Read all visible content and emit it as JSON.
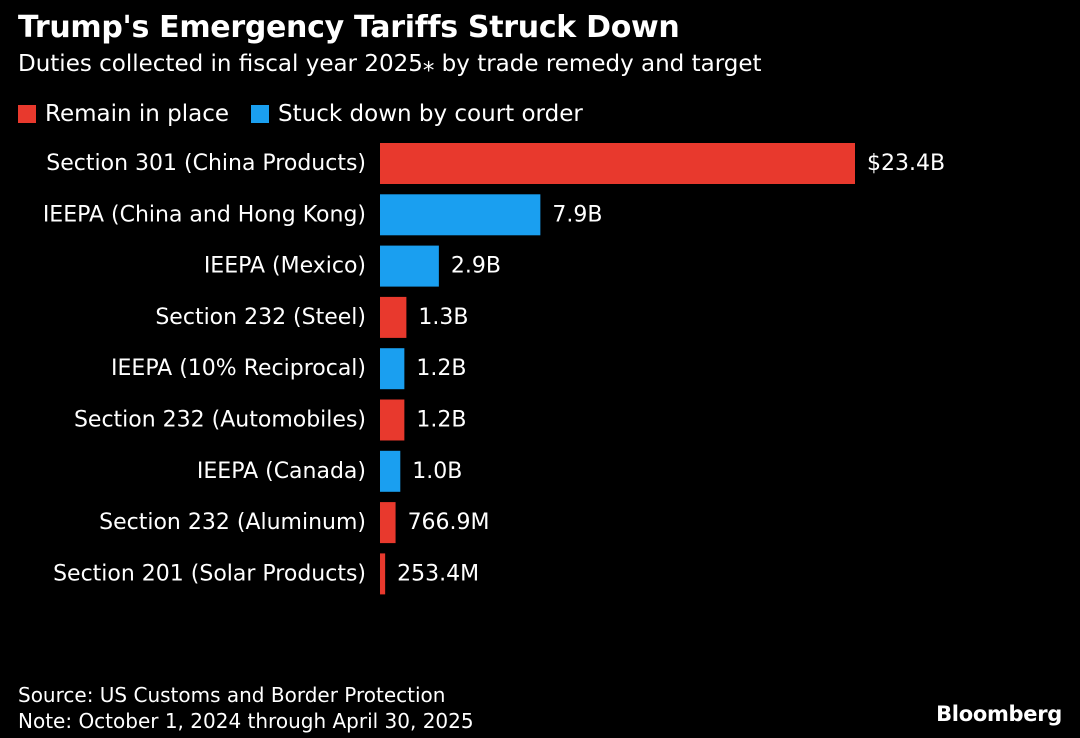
{
  "chart_data": {
    "type": "bar",
    "orientation": "horizontal",
    "title": "Trump's Emergency Tariffs Struck Down",
    "subtitle": "Duties collected in fiscal year 2025⁎ by trade remedy and target",
    "legend": [
      {
        "label": "Remain in place",
        "color": "#e8392d"
      },
      {
        "label": "Stuck down by court order",
        "color": "#1a9ff0"
      }
    ],
    "legend_position": "top-left",
    "grid": false,
    "unit": "USD billions",
    "categories": [
      "Section 301 (China Products)",
      "IEEPA (China and Hong Kong)",
      "IEEPA (Mexico)",
      "Section 232 (Steel)",
      "IEEPA (10% Reciprocal)",
      "Section 232 (Automobiles)",
      "IEEPA (Canada)",
      "Section 232 (Aluminum)",
      "Section 201 (Solar Products)"
    ],
    "values": [
      23.4,
      7.9,
      2.9,
      1.3,
      1.2,
      1.2,
      1.0,
      0.7669,
      0.2534
    ],
    "value_labels": [
      "$23.4B",
      "7.9B",
      "2.9B",
      "1.3B",
      "1.2B",
      "1.2B",
      "1.0B",
      "766.9M",
      "253.4M"
    ],
    "status": [
      "Remain in place",
      "Stuck down by court order",
      "Stuck down by court order",
      "Remain in place",
      "Stuck down by court order",
      "Remain in place",
      "Stuck down by court order",
      "Remain in place",
      "Remain in place"
    ],
    "xlim": [
      0,
      23.4
    ]
  },
  "footer": {
    "source": "Source: US Customs and Border Protection",
    "note": "Note: October 1, 2024 through April 30, 2025"
  },
  "brand": "Bloomberg"
}
